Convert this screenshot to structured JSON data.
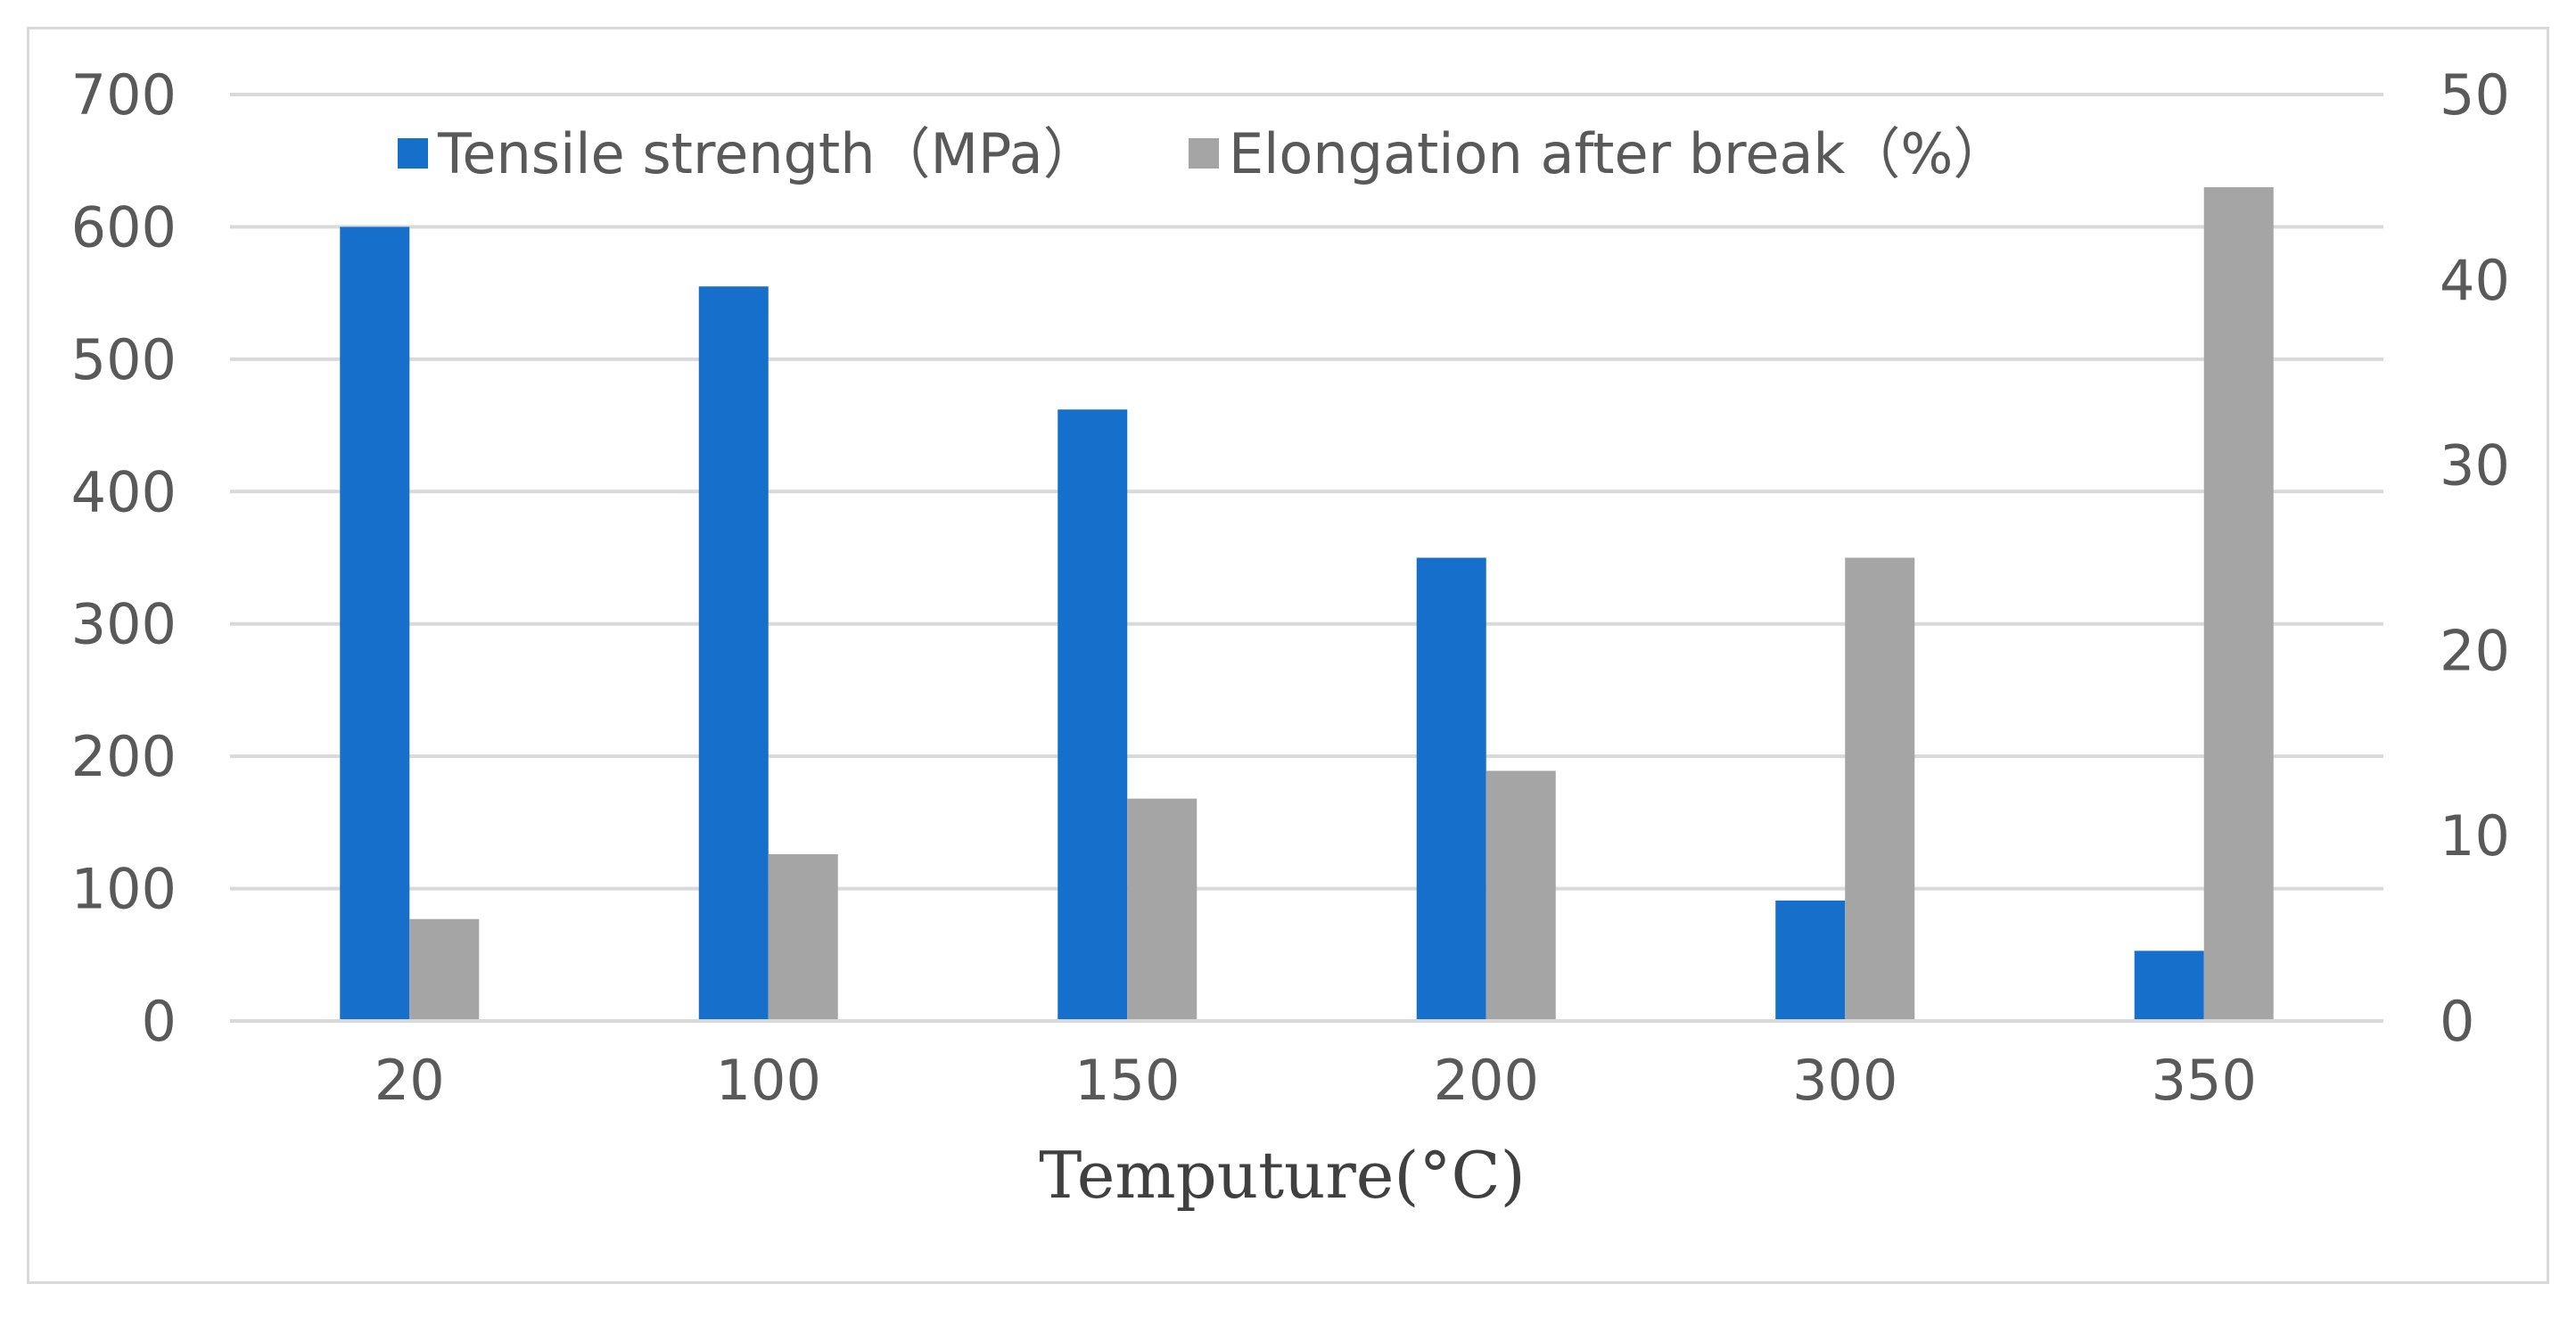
{
  "chart_data": {
    "type": "bar",
    "title": "",
    "xlabel": "Temputure(°C)",
    "ylabel": "",
    "y2label": "",
    "categories": [
      "20",
      "100",
      "150",
      "200",
      "300",
      "350"
    ],
    "series": [
      {
        "name": "Tensile strength（MPa）",
        "axis": "left",
        "color": "#1670cb",
        "values": [
          600,
          555,
          462,
          350,
          91,
          53
        ]
      },
      {
        "name": "Elongation after break（%）",
        "axis": "right",
        "color": "#a5a5a5",
        "values": [
          5.5,
          9,
          12,
          13.5,
          25,
          45
        ]
      }
    ],
    "ylim": [
      0,
      700
    ],
    "y_ticks": [
      "0",
      "100",
      "200",
      "300",
      "400",
      "500",
      "600",
      "700"
    ],
    "y2lim": [
      0,
      50
    ],
    "y2_ticks": [
      "0",
      "10",
      "20",
      "30",
      "40",
      "50"
    ],
    "grid": true,
    "legend_position": "top-center"
  }
}
